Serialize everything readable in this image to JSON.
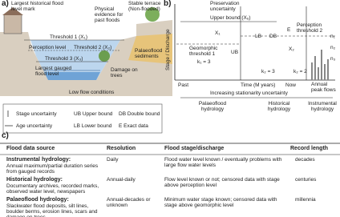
{
  "panel_a": {
    "label": "a)",
    "annotations": [
      "Largest historical flood level mark",
      "Physical evidence for past floods",
      "Stable terrace (Non-flooded)",
      "Threshold 1 (X₁)",
      "Perception level",
      "Threshold 2 (X₂)",
      "Palaeoflood sediments",
      "Threshold 3 (X₃)",
      "Largest gauged flood level",
      "Damage on trees",
      "Low flow conditions"
    ]
  },
  "legend": [
    "Stage uncertainty",
    "Age uncertainty",
    "UB Upper bound",
    "LB Lower bound",
    "DB Double bound",
    "E Exact data"
  ],
  "panel_b": {
    "label": "b)",
    "y_label": "Stage / Discharge",
    "annotations": [
      "Preservation uncertainty",
      "Upper bound (Xᵤ)",
      "X₁",
      "LB",
      "DB",
      "E",
      "Perception threshold 2",
      "Geomorphic threshold 1",
      "k₁ = 3",
      "UB",
      "X₂",
      "k₂ = 3",
      "k₂ = 2",
      "n₁",
      "n₂",
      "n₃"
    ],
    "x_labels": [
      "Past",
      "Time (M years)",
      "Now",
      "Annual peak flows"
    ],
    "arrow_label": "Increasing stationarity uncertainty",
    "periods": [
      "Palaeoflood hydrology",
      "Historical hydrology",
      "Instrumental hydrology"
    ]
  },
  "panel_c": {
    "label": "c)",
    "header": [
      "Flood data source",
      "Resolution",
      "Flood stage/discharge",
      "Record length"
    ],
    "rows": [
      [
        {
          "title": "Instrumental hydrology:",
          "text": "Annual maximum/partial duration series from gauged records"
        },
        "Daily",
        "Flood water level known / eventually problems with large flow water levels",
        "decades"
      ],
      [
        {
          "title": "Historical hydrology:",
          "text": "Documentary archives, recorded marks, observed water level, newspapers"
        },
        "Annual-daily",
        "Flow level known or not; censored data with stage above perception level",
        "centuries"
      ],
      [
        {
          "title": "Palaeoflood hydrology:",
          "text": "Slackwater flood deposits, silt lines, boulder berms, erosion lines, scars and damage on trees"
        },
        "Annual-decades or unknown",
        "Minimum water stage known; censored data with stage above geomorphic level",
        "millennia"
      ]
    ]
  }
}
